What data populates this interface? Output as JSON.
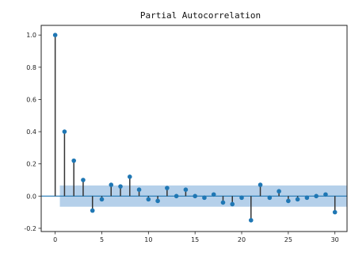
{
  "chart_data": {
    "type": "stem",
    "title": "Partial Autocorrelation",
    "xlabel": "",
    "ylabel": "",
    "xlim": [
      -1.5,
      31.3
    ],
    "ylim": [
      -0.22,
      1.06
    ],
    "xticks": [
      0,
      5,
      10,
      15,
      20,
      25,
      30
    ],
    "xtick_labels": [
      "0",
      "5",
      "10",
      "15",
      "20",
      "25",
      "30"
    ],
    "yticks": [
      -0.2,
      0.0,
      0.2,
      0.4,
      0.6,
      0.8,
      1.0
    ],
    "ytick_labels": [
      "-0.2",
      "0.0",
      "0.2",
      "0.4",
      "0.6",
      "0.8",
      "1.0"
    ],
    "grid": false,
    "lags": [
      0,
      1,
      2,
      3,
      4,
      5,
      6,
      7,
      8,
      9,
      10,
      11,
      12,
      13,
      14,
      15,
      16,
      17,
      18,
      19,
      20,
      21,
      22,
      23,
      24,
      25,
      26,
      27,
      28,
      29,
      30
    ],
    "values": [
      1.0,
      0.4,
      0.22,
      0.1,
      -0.09,
      -0.02,
      0.07,
      0.06,
      0.12,
      0.04,
      -0.02,
      -0.03,
      0.05,
      0.0,
      0.04,
      0.0,
      -0.01,
      0.01,
      -0.04,
      -0.05,
      -0.01,
      -0.15,
      0.07,
      -0.01,
      0.03,
      -0.03,
      -0.02,
      -0.01,
      0.0,
      0.01,
      -0.1
    ],
    "confidence_band": [
      -0.066,
      0.066
    ],
    "band_start_lag": 0.5,
    "colors": {
      "stem": "#333333",
      "marker": "#1f77b4",
      "band": "#a8c8e6",
      "zero_line": "#1f77b4"
    }
  }
}
